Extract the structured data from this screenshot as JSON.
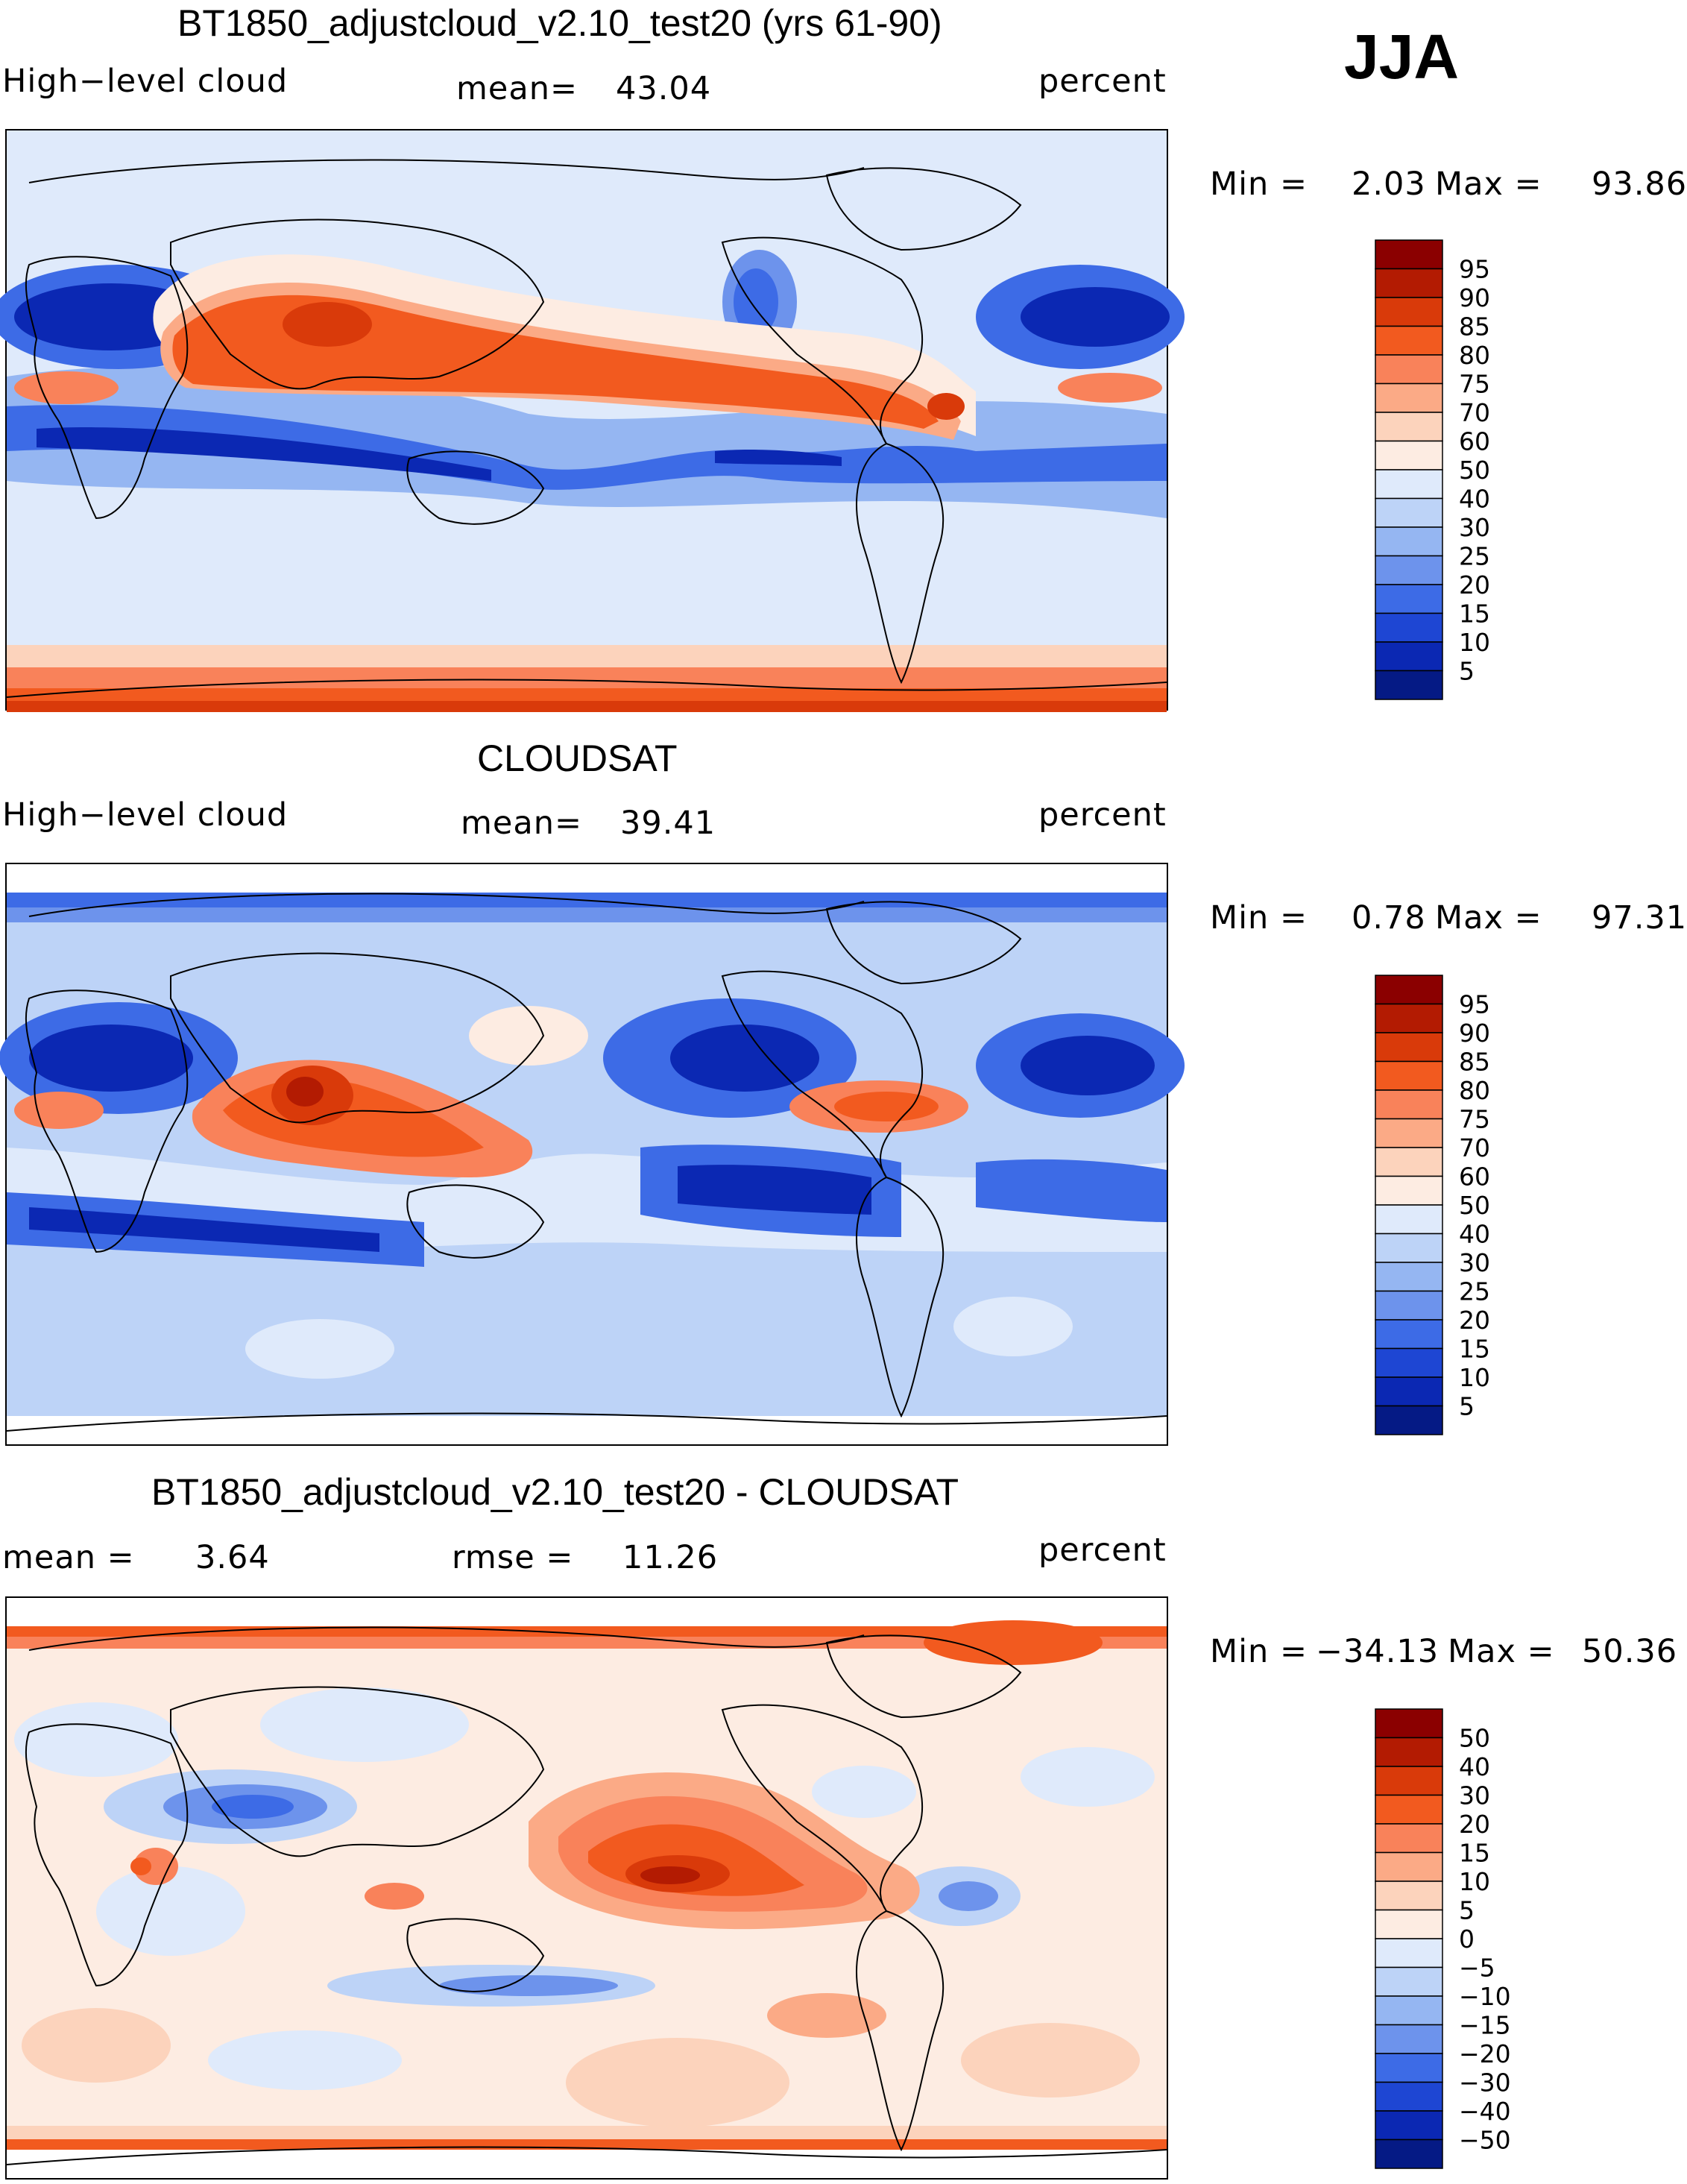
{
  "season": "JJA",
  "panels": [
    {
      "title": "BT1850_adjustcloud_v2.10_test20 (yrs 61-90)",
      "left_label": "High−level cloud",
      "mid_label": "mean=",
      "mid_value": "43.04",
      "right_label": "percent",
      "min_label": "Min =",
      "min_value": "2.03",
      "max_label": "Max =",
      "max_value": "93.86"
    },
    {
      "title": "CLOUDSAT",
      "left_label": "High−level cloud",
      "mid_label": "mean=",
      "mid_value": "39.41",
      "right_label": "percent",
      "min_label": "Min =",
      "min_value": "0.78",
      "max_label": "Max =",
      "max_value": "97.31"
    },
    {
      "title": "BT1850_adjustcloud_v2.10_test20 - CLOUDSAT",
      "left_label": "mean =",
      "left_value": "3.64",
      "mid_label": "rmse =",
      "mid_value": "11.26",
      "right_label": "percent",
      "min_label": "Min =",
      "min_value": "−34.13",
      "max_label": "Max =",
      "max_value": "50.36"
    }
  ],
  "chart_data": [
    {
      "type": "heatmap",
      "title": "BT1850_adjustcloud_v2.10_test20 (yrs 61-90)",
      "variable": "High-level cloud",
      "units": "percent",
      "mean": 43.04,
      "min": 2.03,
      "max": 93.86,
      "colorbar_levels": [
        "95",
        "90",
        "85",
        "80",
        "75",
        "70",
        "60",
        "50",
        "40",
        "30",
        "25",
        "20",
        "15",
        "10",
        "5"
      ],
      "colorbar_colors": [
        "#8b0000",
        "#b31b02",
        "#d93a0a",
        "#f25a1f",
        "#f9825a",
        "#fbaa86",
        "#fcd3bc",
        "#fdece2",
        "#dfeafb",
        "#bdd3f7",
        "#95b6f2",
        "#6d93ec",
        "#3d6be6",
        "#1e46d3",
        "#0b28b3",
        "#051a85"
      ]
    },
    {
      "type": "heatmap",
      "title": "CLOUDSAT",
      "variable": "High-level cloud",
      "units": "percent",
      "mean": 39.41,
      "min": 0.78,
      "max": 97.31,
      "colorbar_levels": [
        "95",
        "90",
        "85",
        "80",
        "75",
        "70",
        "60",
        "50",
        "40",
        "30",
        "25",
        "20",
        "15",
        "10",
        "5"
      ],
      "colorbar_colors": [
        "#8b0000",
        "#b31b02",
        "#d93a0a",
        "#f25a1f",
        "#f9825a",
        "#fbaa86",
        "#fcd3bc",
        "#fdece2",
        "#dfeafb",
        "#bdd3f7",
        "#95b6f2",
        "#6d93ec",
        "#3d6be6",
        "#1e46d3",
        "#0b28b3",
        "#051a85"
      ]
    },
    {
      "type": "heatmap",
      "title": "BT1850_adjustcloud_v2.10_test20 - CLOUDSAT",
      "variable": "difference",
      "units": "percent",
      "mean": 3.64,
      "rmse": 11.26,
      "min": -34.13,
      "max": 50.36,
      "colorbar_levels": [
        "50",
        "40",
        "30",
        "20",
        "15",
        "10",
        "5",
        "0",
        "−5",
        "−10",
        "−15",
        "−20",
        "−30",
        "−40",
        "−50"
      ],
      "colorbar_colors": [
        "#8b0000",
        "#b31b02",
        "#d93a0a",
        "#f25a1f",
        "#f9825a",
        "#fbaa86",
        "#fcd3bc",
        "#fdece2",
        "#dfeafb",
        "#bdd3f7",
        "#95b6f2",
        "#6d93ec",
        "#3d6be6",
        "#1e46d3",
        "#0b28b3",
        "#051a85"
      ]
    }
  ]
}
